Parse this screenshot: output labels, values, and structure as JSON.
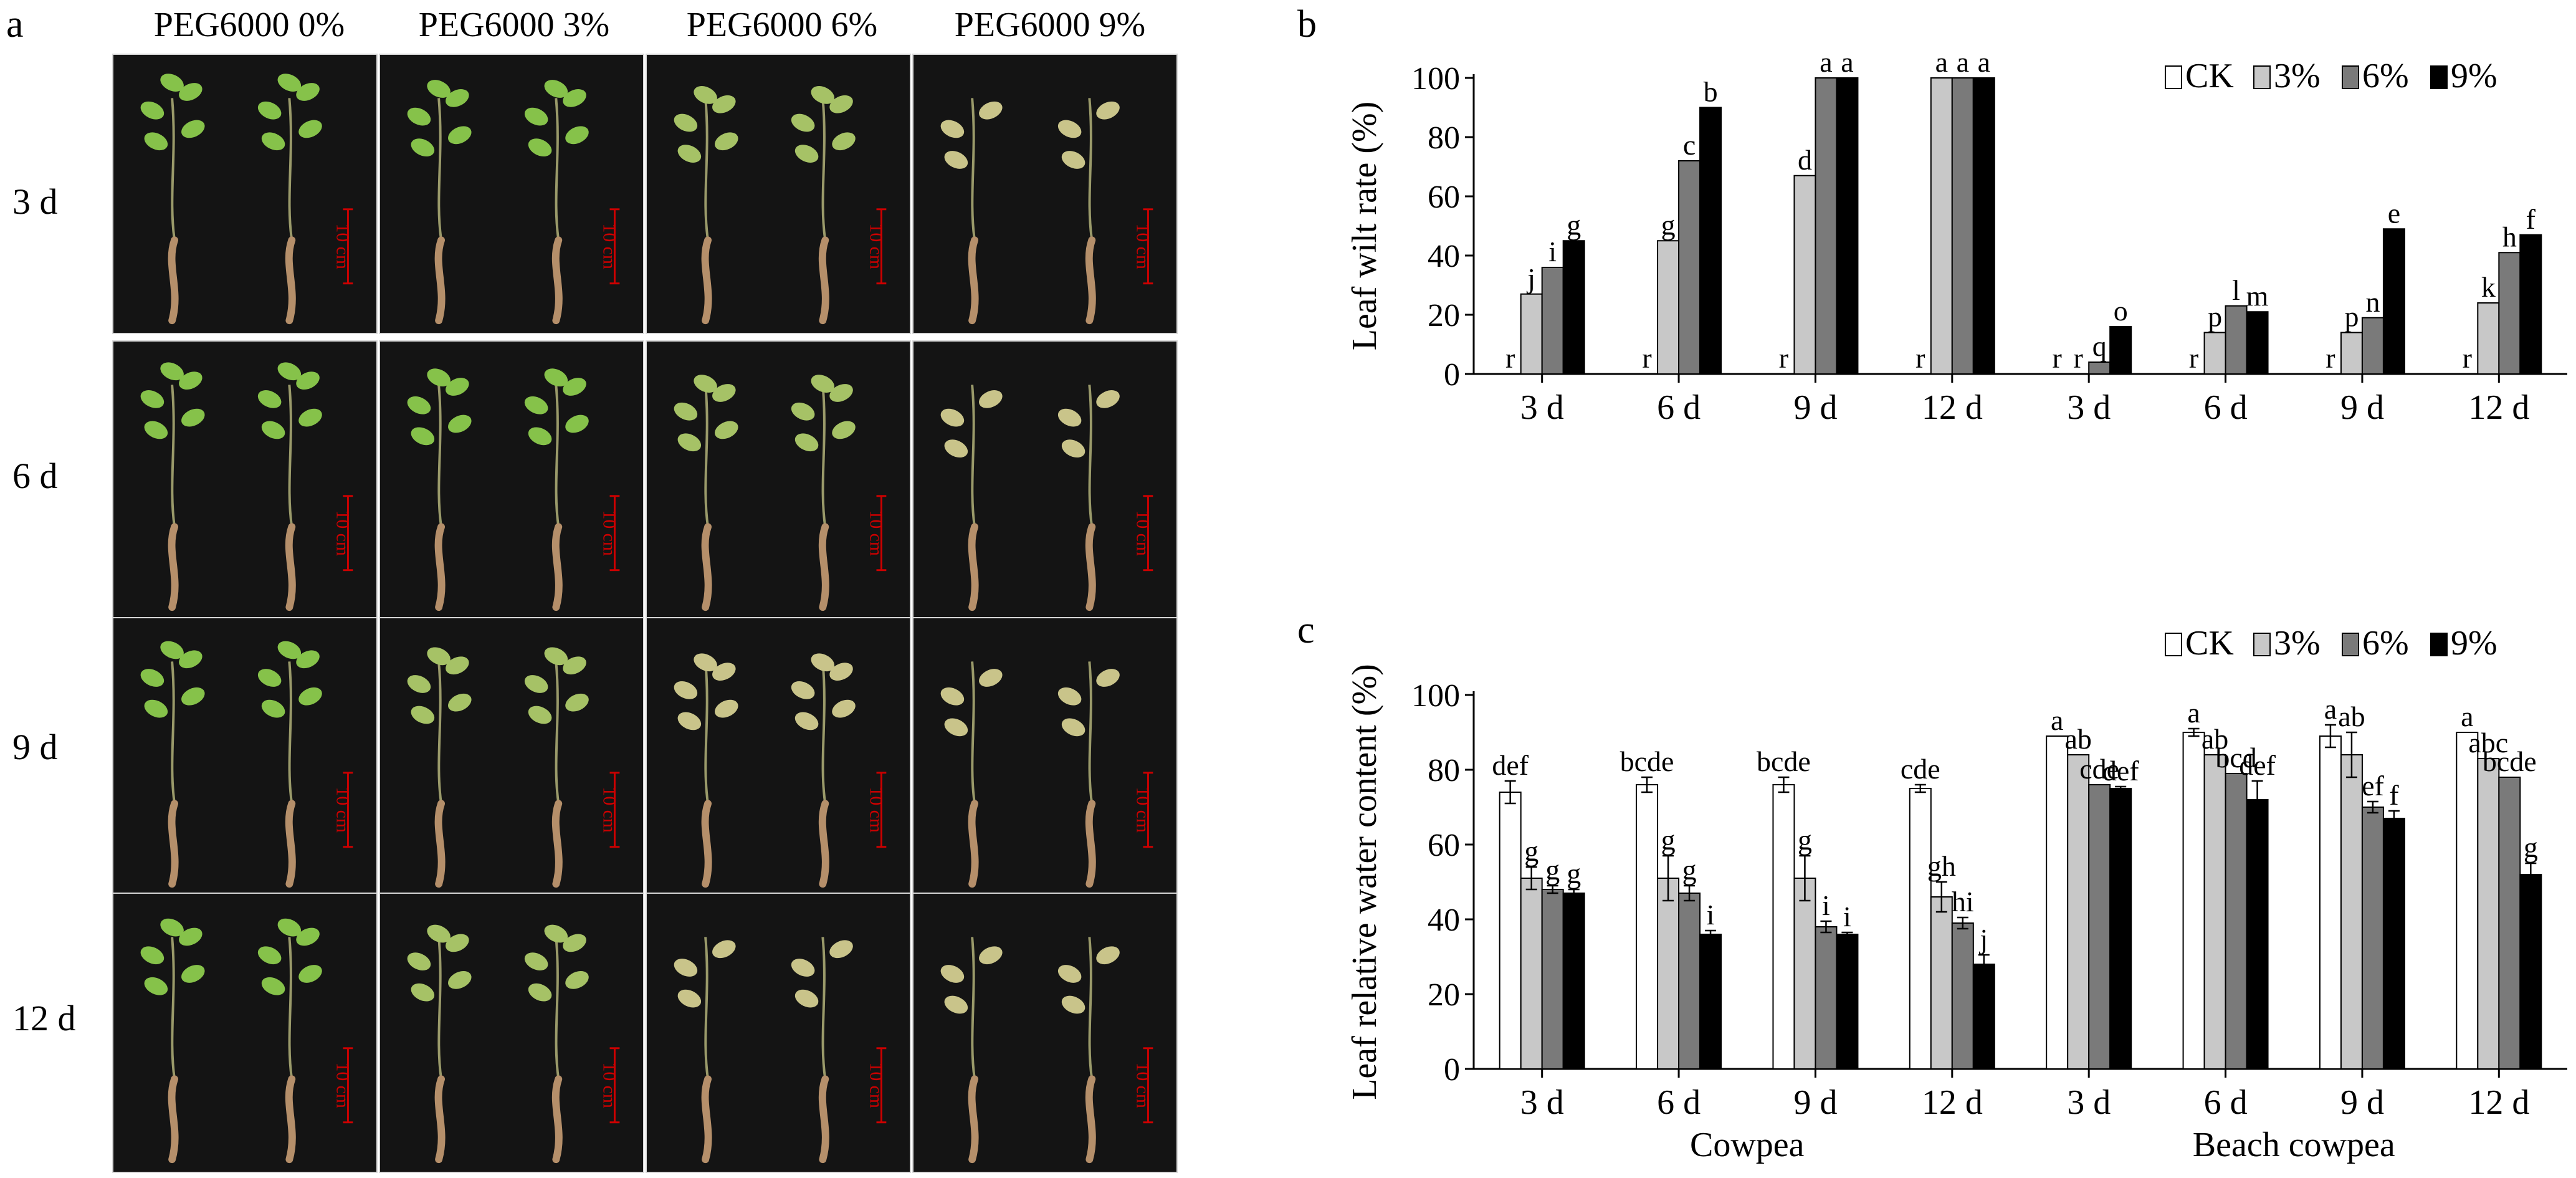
{
  "panel_a": {
    "letter": "a",
    "columns": [
      "PEG6000 0%",
      "PEG6000 3%",
      "PEG6000 6%",
      "PEG6000 9%"
    ],
    "rows": [
      "3 d",
      "6 d",
      "9 d",
      "12 d"
    ],
    "scale_label": "10 cm",
    "scale_color": "#cc0000"
  },
  "chart_data": [
    {
      "panel": "b",
      "type": "bar",
      "ylabel": "Leaf wilt rate (%)",
      "ylim": [
        0,
        100
      ],
      "yticks": [
        0,
        20,
        40,
        60,
        80,
        100
      ],
      "categories": [
        "3 d",
        "6 d",
        "9 d",
        "12 d",
        "3 d",
        "6 d",
        "9 d",
        "12 d"
      ],
      "groups": [],
      "legend": [
        "CK",
        "3%",
        "6%",
        "9%"
      ],
      "colors": [
        "#ffffff",
        "#c8c8c8",
        "#7a7a7a",
        "#000000"
      ],
      "series": [
        {
          "name": "CK",
          "values": [
            0,
            0,
            0,
            0,
            0,
            0,
            0,
            0
          ],
          "errors": [
            0,
            0,
            0,
            0,
            0,
            0,
            0,
            0
          ],
          "labels": [
            "r",
            "r",
            "r",
            "r",
            "r",
            "r",
            "r",
            "r"
          ]
        },
        {
          "name": "3%",
          "values": [
            27,
            45,
            67,
            100,
            0,
            14,
            14,
            24
          ],
          "errors": [
            0,
            0,
            0,
            0,
            0,
            0,
            0,
            0
          ],
          "labels": [
            "j",
            "g",
            "d",
            "a",
            "r",
            "p",
            "p",
            "k"
          ]
        },
        {
          "name": "6%",
          "values": [
            36,
            72,
            100,
            100,
            4,
            23,
            19,
            41
          ],
          "errors": [
            0,
            0,
            0,
            0,
            0,
            0,
            0,
            0
          ],
          "labels": [
            "i",
            "c",
            "a",
            "a",
            "q",
            "l",
            "n",
            "h"
          ]
        },
        {
          "name": "9%",
          "values": [
            45,
            90,
            100,
            100,
            16,
            21,
            49,
            47
          ],
          "errors": [
            0,
            0,
            0,
            0,
            0,
            0,
            0,
            0
          ],
          "labels": [
            "g",
            "b",
            "a",
            "a",
            "o",
            "m",
            "e",
            "f"
          ]
        }
      ]
    },
    {
      "panel": "c",
      "type": "bar",
      "ylabel": "Leaf relative water content (%)",
      "ylim": [
        0,
        100
      ],
      "yticks": [
        0,
        20,
        40,
        60,
        80,
        100
      ],
      "categories": [
        "3 d",
        "6 d",
        "9 d",
        "12 d",
        "3 d",
        "6 d",
        "9 d",
        "12 d"
      ],
      "groups": [
        "Cowpea",
        "Beach cowpea"
      ],
      "legend": [
        "CK",
        "3%",
        "6%",
        "9%"
      ],
      "colors": [
        "#ffffff",
        "#c8c8c8",
        "#7a7a7a",
        "#000000"
      ],
      "series": [
        {
          "name": "CK",
          "values": [
            74,
            76,
            76,
            75,
            89,
            90,
            89,
            90
          ],
          "errors": [
            3,
            2,
            2,
            1,
            0,
            1,
            3,
            0
          ],
          "labels": [
            "def",
            "bcde",
            "bcde",
            "cde",
            "a",
            "a",
            "a",
            "a"
          ]
        },
        {
          "name": "3%",
          "values": [
            51,
            51,
            51,
            46,
            84,
            84,
            84,
            83
          ],
          "errors": [
            3,
            6,
            6,
            4,
            0,
            0,
            6,
            0
          ],
          "labels": [
            "g",
            "g",
            "g",
            "gh",
            "ab",
            "ab",
            "ab",
            "abc"
          ]
        },
        {
          "name": "6%",
          "values": [
            48,
            47,
            38,
            39,
            76,
            79,
            70,
            78
          ],
          "errors": [
            1,
            2,
            1.5,
            1.5,
            0,
            0,
            1.5,
            0
          ],
          "labels": [
            "g",
            "g",
            "i",
            "hi",
            "cde",
            "bcd",
            "ef",
            "bcde"
          ]
        },
        {
          "name": "9%",
          "values": [
            47,
            36,
            36,
            28,
            75,
            72,
            67,
            52
          ],
          "errors": [
            1,
            1,
            0.5,
            2.5,
            0.5,
            5,
            2,
            3
          ],
          "labels": [
            "g",
            "i",
            "i",
            "j",
            "def",
            "def",
            "f",
            "g"
          ]
        }
      ]
    }
  ]
}
